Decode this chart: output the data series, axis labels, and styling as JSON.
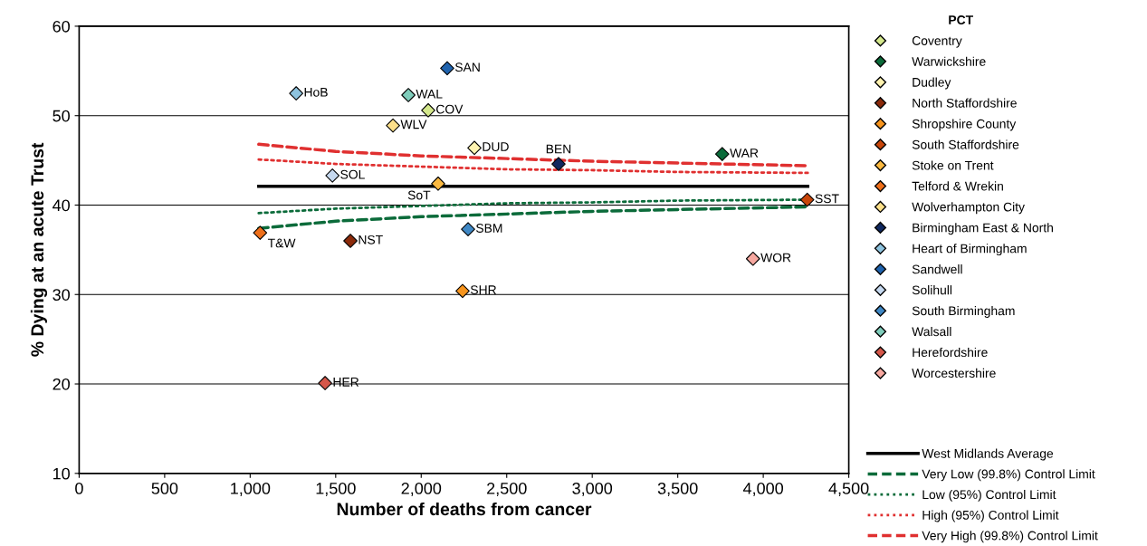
{
  "chart_data": {
    "type": "scatter",
    "xlabel": "Number of deaths from cancer",
    "ylabel": "% Dying at an acute Trust",
    "legend_title": "PCT",
    "legend": "right",
    "grid": "y",
    "marker": "diamond",
    "xlim": [
      0,
      4500
    ],
    "xticks": [
      0,
      500,
      {
        "value": 1000,
        "label": "1,000"
      },
      {
        "value": 1500,
        "label": "1,500"
      },
      {
        "value": 2000,
        "label": "2,000"
      },
      {
        "value": 2500,
        "label": "2,500"
      },
      {
        "value": 3000,
        "label": "3,000"
      },
      {
        "value": 3500,
        "label": "3,500"
      },
      {
        "value": 4000,
        "label": "4,000"
      },
      {
        "value": 4500,
        "label": "4,500"
      }
    ],
    "ylim": [
      10,
      60
    ],
    "yticks": [
      10,
      20,
      30,
      40,
      50,
      60
    ],
    "series": [
      {
        "name": "Coventry",
        "color": "#d4e88c",
        "x": [
          2041
        ],
        "values": [
          50.6
        ]
      },
      {
        "name": "Warwickshire",
        "color": "#0b6b3a",
        "x": [
          3760
        ],
        "values": [
          45.7
        ]
      },
      {
        "name": "Dudley",
        "color": "#fff3b0",
        "x": [
          2311
        ],
        "values": [
          46.4
        ]
      },
      {
        "name": "North Staffordshire",
        "color": "#8b2a0a",
        "x": [
          1586
        ],
        "values": [
          36.0
        ]
      },
      {
        "name": "Shropshire County",
        "color": "#f7941d",
        "x": [
          2242
        ],
        "values": [
          30.4
        ]
      },
      {
        "name": "South Staffordshire",
        "color": "#c8460a",
        "x": [
          4257
        ],
        "values": [
          40.6
        ]
      },
      {
        "name": "Stoke on Trent",
        "color": "#fbb940",
        "x": [
          2099
        ],
        "values": [
          42.4
        ]
      },
      {
        "name": "Telford & Wrekin",
        "color": "#ee6f1a",
        "x": [
          1058
        ],
        "values": [
          36.9
        ]
      },
      {
        "name": "Wolverhampton City",
        "color": "#fde08a",
        "x": [
          1835
        ],
        "values": [
          48.9
        ]
      },
      {
        "name": "Birmingham East & North",
        "color": "#10285f",
        "x": [
          2803
        ],
        "values": [
          44.6
        ]
      },
      {
        "name": "Heart of Birmingham",
        "color": "#8ec3de",
        "x": [
          1269
        ],
        "values": [
          52.5
        ]
      },
      {
        "name": "Sandwell",
        "color": "#1f63ae",
        "x": [
          2152
        ],
        "values": [
          55.3
        ]
      },
      {
        "name": "Solihull",
        "color": "#c6d9f0",
        "x": [
          1481
        ],
        "values": [
          43.3
        ]
      },
      {
        "name": "South Birmingham",
        "color": "#3f88c5",
        "x": [
          2274
        ],
        "values": [
          37.3
        ]
      },
      {
        "name": "Walsall",
        "color": "#7fcdbb",
        "x": [
          1925
        ],
        "values": [
          52.3
        ]
      },
      {
        "name": "Herefordshire",
        "color": "#d5574a",
        "x": [
          1438
        ],
        "values": [
          20.1
        ]
      },
      {
        "name": "Worcestershire",
        "color": "#f7a8a0",
        "x": [
          3940
        ],
        "values": [
          34.0
        ]
      },
      {
        "name": "West Midlands Average",
        "type": "line",
        "line_style": "solid",
        "marker": "none",
        "color": "#000000",
        "x": [
          1050,
          4260
        ],
        "values": [
          42.1,
          42.1
        ]
      },
      {
        "name": "Very Low (99.8%) Control Limit",
        "type": "line",
        "line_style": "dashed",
        "marker": "none",
        "color": "#0b6b3a",
        "x": [
          1050,
          1500,
          2000,
          2500,
          3000,
          3500,
          4260
        ],
        "values": [
          37.4,
          38.2,
          38.7,
          39.0,
          39.3,
          39.5,
          39.8
        ]
      },
      {
        "name": "Low (95%) Control Limit",
        "type": "line",
        "line_style": "dotted",
        "marker": "none",
        "color": "#0b6b3a",
        "x": [
          1050,
          1500,
          2000,
          2500,
          3000,
          3500,
          4260
        ],
        "values": [
          39.1,
          39.6,
          39.9,
          40.2,
          40.3,
          40.5,
          40.6
        ]
      },
      {
        "name": "High (95%) Control Limit",
        "type": "line",
        "line_style": "dotted",
        "marker": "none",
        "color": "#e03030",
        "x": [
          1050,
          1500,
          2000,
          2500,
          3000,
          3500,
          4260
        ],
        "values": [
          45.1,
          44.6,
          44.3,
          44.0,
          43.9,
          43.7,
          43.6
        ]
      },
      {
        "name": "Very High (99.8%) Control Limit",
        "type": "line",
        "line_style": "dashed",
        "marker": "none",
        "color": "#e03030",
        "x": [
          1050,
          1500,
          2000,
          2500,
          3000,
          3500,
          4260
        ],
        "values": [
          46.8,
          46.0,
          45.5,
          45.2,
          44.9,
          44.7,
          44.4
        ]
      }
    ],
    "annotations": [
      {
        "text": "COV",
        "x": 2041,
        "y": 50.6
      },
      {
        "text": "WAR",
        "x": 3760,
        "y": 45.7
      },
      {
        "text": "DUD",
        "x": 2311,
        "y": 46.4
      },
      {
        "text": "NST",
        "x": 1586,
        "y": 36.0
      },
      {
        "text": "SHR",
        "x": 2242,
        "y": 30.4
      },
      {
        "text": "SST",
        "x": 4257,
        "y": 40.6
      },
      {
        "text": "SoT",
        "x": 2099,
        "y": 42.4
      },
      {
        "text": "T&W",
        "x": 1058,
        "y": 36.9
      },
      {
        "text": "WLV",
        "x": 1835,
        "y": 48.9
      },
      {
        "text": "BEN",
        "x": 2803,
        "y": 44.6
      },
      {
        "text": "HoB",
        "x": 1269,
        "y": 52.5
      },
      {
        "text": "SAN",
        "x": 2152,
        "y": 55.3
      },
      {
        "text": "SOL",
        "x": 1481,
        "y": 43.3
      },
      {
        "text": "SBM",
        "x": 2274,
        "y": 37.3
      },
      {
        "text": "WAL",
        "x": 1925,
        "y": 52.3
      },
      {
        "text": "HER",
        "x": 1438,
        "y": 20.1
      },
      {
        "text": "WOR",
        "x": 3940,
        "y": 34.0
      }
    ]
  }
}
